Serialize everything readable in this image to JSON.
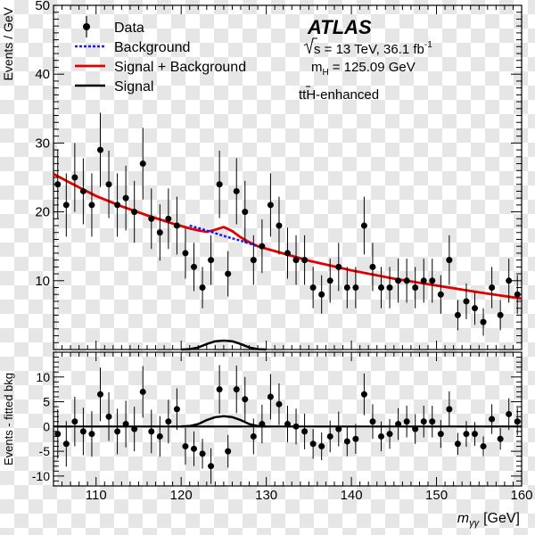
{
  "chart_data": [
    {
      "type": "scatter",
      "panel": "main",
      "ylabel": "Events / GeV",
      "xlim": [
        105,
        160
      ],
      "ylim": [
        0,
        50
      ],
      "yticks": [
        10,
        20,
        30,
        40,
        50
      ],
      "experiment": "ATLAS",
      "energy_line": "s = 13 TeV, 36.1 fb",
      "energy_sup": "-1",
      "mass_line": "= 125.09 GeV",
      "mass_symbol": "m",
      "mass_sub": "H",
      "category_label": "ttH-enhanced",
      "legend": {
        "position": "top-left",
        "entries": [
          "Data",
          "Background",
          "Signal + Background",
          "Signal"
        ]
      },
      "colors": {
        "data": "#000000",
        "background": "#1a1aff",
        "signal_plus_background": "#e00000",
        "signal": "#000000"
      },
      "series": [
        {
          "name": "Data",
          "x": [
            105.5,
            106.5,
            107.5,
            108.5,
            109.5,
            110.5,
            111.5,
            112.5,
            113.5,
            114.5,
            115.5,
            116.5,
            117.5,
            118.5,
            119.5,
            120.5,
            121.5,
            122.5,
            123.5,
            124.5,
            125.5,
            126.5,
            127.5,
            128.5,
            129.5,
            130.5,
            131.5,
            132.5,
            133.5,
            134.5,
            135.5,
            136.5,
            137.5,
            138.5,
            139.5,
            140.5,
            141.5,
            142.5,
            143.5,
            144.5,
            145.5,
            146.5,
            147.5,
            148.5,
            149.5,
            150.5,
            151.5,
            152.5,
            153.5,
            154.5,
            155.5,
            156.5,
            157.5,
            158.5,
            159.5
          ],
          "y": [
            24,
            21,
            25,
            23,
            21,
            29,
            24,
            21,
            22,
            20,
            27,
            19,
            17,
            19,
            18,
            14,
            12,
            9,
            13,
            24,
            11,
            23,
            20,
            13,
            15,
            21,
            18,
            14,
            13,
            13,
            9,
            8,
            10,
            12,
            9,
            9,
            18,
            12,
            9,
            9,
            10,
            10,
            9,
            10,
            10,
            8,
            13,
            5,
            7,
            6,
            4,
            9,
            5,
            10,
            8
          ],
          "yerr": [
            5,
            4.6,
            5,
            4.8,
            4.6,
            5.4,
            4.9,
            4.6,
            4.7,
            4.5,
            5.2,
            4.4,
            4.1,
            4.4,
            4.2,
            3.7,
            3.5,
            3,
            3.6,
            4.9,
            3.3,
            4.8,
            4.5,
            3.6,
            3.9,
            4.6,
            4.2,
            3.7,
            3.6,
            3.6,
            3,
            2.8,
            3.2,
            3.5,
            3,
            3,
            4.2,
            3.5,
            3,
            3,
            3.2,
            3.2,
            3,
            3.2,
            3.2,
            2.8,
            3.6,
            2.2,
            2.6,
            2.4,
            2,
            3,
            2.2,
            3.2,
            2.8
          ]
        },
        {
          "name": "Background",
          "x": [
            121,
            123,
            125,
            127,
            129
          ],
          "y": [
            18.0,
            17.3,
            16.5,
            15.8,
            15.0
          ]
        },
        {
          "name": "Signal + Background",
          "x": [
            105,
            107,
            110,
            113,
            116,
            119,
            121,
            122,
            123,
            124,
            125,
            126,
            127,
            128,
            129,
            131,
            135,
            140,
            145,
            150,
            155,
            160
          ],
          "y": [
            25.5,
            24.2,
            22.3,
            20.8,
            19.5,
            18.3,
            17.6,
            17.3,
            17.1,
            17.4,
            17.8,
            17.2,
            16.3,
            15.6,
            15.0,
            14.3,
            12.9,
            11.5,
            10.3,
            9.3,
            8.3,
            7.4
          ]
        },
        {
          "name": "Signal",
          "x": [
            120,
            121,
            122,
            123,
            124,
            125,
            126,
            127,
            128,
            129,
            130
          ],
          "y": [
            0,
            0.05,
            0.3,
            0.8,
            1.2,
            1.3,
            1.2,
            0.8,
            0.3,
            0.05,
            0
          ]
        }
      ]
    },
    {
      "type": "scatter",
      "panel": "ratio",
      "xlabel": "m",
      "xlabel_sub": "γγ",
      "xlabel_unit": "[GeV]",
      "ylabel": "Events - fitted bkg",
      "xlim": [
        105,
        160
      ],
      "ylim": [
        -12,
        15
      ],
      "xticks": [
        110,
        120,
        130,
        140,
        150,
        160
      ],
      "yticks": [
        -10,
        -5,
        0,
        5,
        10
      ],
      "series": [
        {
          "name": "Data - Background",
          "x": [
            105.5,
            106.5,
            107.5,
            108.5,
            109.5,
            110.5,
            111.5,
            112.5,
            113.5,
            114.5,
            115.5,
            116.5,
            117.5,
            118.5,
            119.5,
            120.5,
            121.5,
            122.5,
            123.5,
            124.5,
            125.5,
            126.5,
            127.5,
            128.5,
            129.5,
            130.5,
            131.5,
            132.5,
            133.5,
            134.5,
            135.5,
            136.5,
            137.5,
            138.5,
            139.5,
            140.5,
            141.5,
            142.5,
            143.5,
            144.5,
            145.5,
            146.5,
            147.5,
            148.5,
            149.5,
            150.5,
            151.5,
            152.5,
            153.5,
            154.5,
            155.5,
            156.5,
            157.5,
            158.5,
            159.5
          ],
          "y": [
            -1.5,
            -3.5,
            1,
            -1,
            -1.5,
            6.5,
            2,
            -1,
            0.5,
            -0.5,
            7,
            -1,
            -2,
            1,
            3.5,
            -4,
            -4.5,
            -5.5,
            -8,
            7.5,
            -5,
            7.5,
            5.5,
            -2,
            0.5,
            6,
            4.5,
            0.5,
            0,
            -1,
            -3.5,
            -4,
            -2,
            -0.5,
            -3,
            -2.5,
            6.5,
            1,
            -2,
            -1.5,
            0.5,
            1,
            -0.5,
            1,
            1,
            -1.5,
            3.5,
            -3.5,
            -1.5,
            -1.5,
            -4,
            1.5,
            -2.5,
            2.5,
            1
          ]
        },
        {
          "name": "Signal",
          "x": [
            120,
            121,
            122,
            123,
            124,
            125,
            126,
            127,
            128,
            129,
            130
          ],
          "y": [
            0,
            0.1,
            0.5,
            1.3,
            1.9,
            2.1,
            1.9,
            1.3,
            0.5,
            0.1,
            0
          ]
        }
      ]
    }
  ]
}
